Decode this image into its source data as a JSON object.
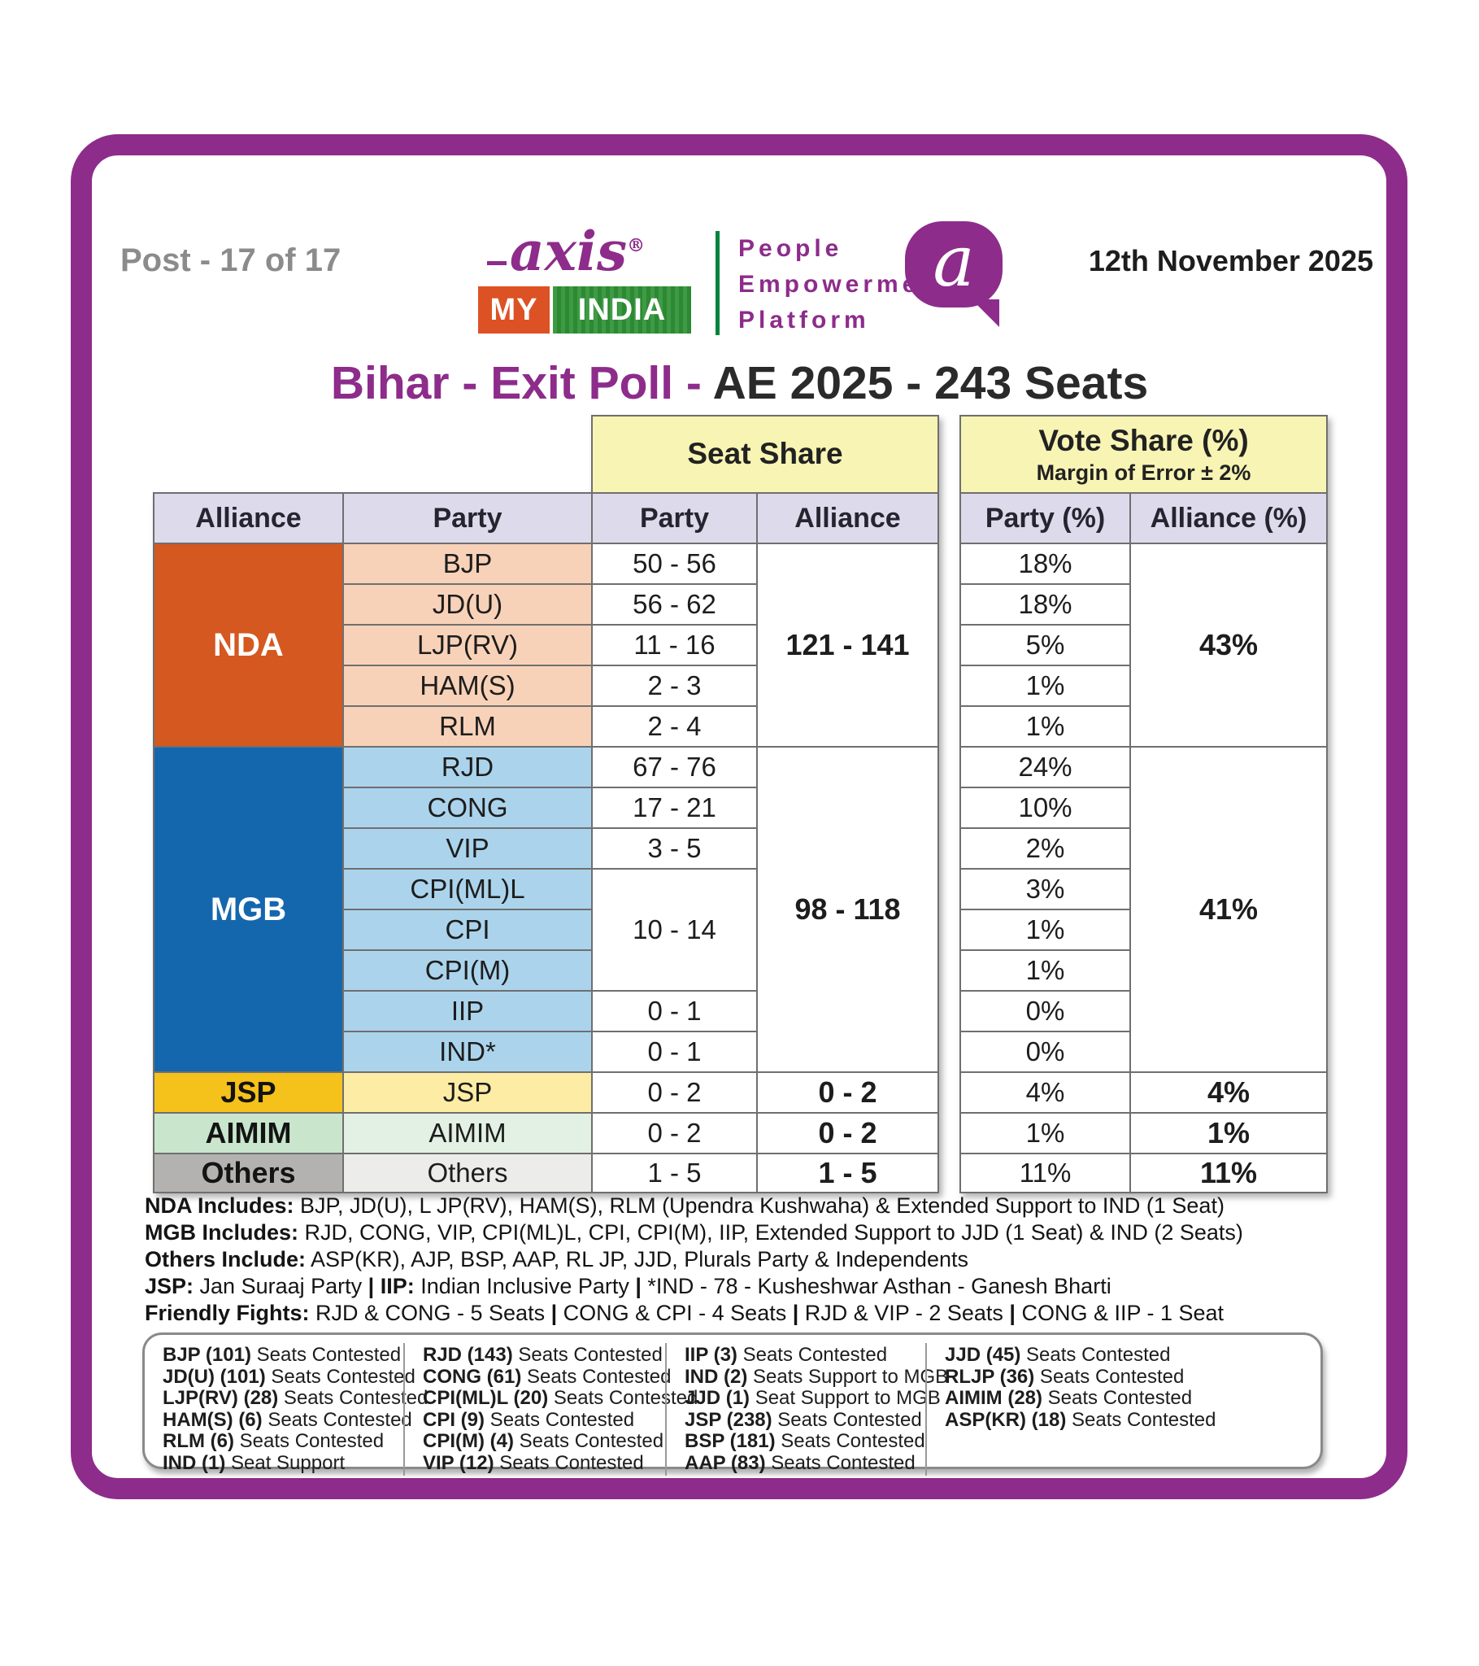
{
  "page": {
    "post_label": "Post - 17 of 17",
    "date": "12th November 2025",
    "title_primary": "Bihar - Exit Poll - ",
    "title_secondary": "AE 2025 - 243 Seats"
  },
  "logo": {
    "brand_top": "axis",
    "brand_reg": "®",
    "brand_my": "MY",
    "brand_india": "INDIA",
    "tagline_line1": "People",
    "tagline_line2": "Empowerment",
    "tagline_line3": "Platform",
    "bubble_letter": "a",
    "brand_purple": "#8d2c8b",
    "brand_orange": "#dd5224",
    "brand_green": "#2f9235"
  },
  "table": {
    "group_headers": {
      "seat_share": "Seat Share",
      "vote_share": "Vote Share (%)",
      "margin_of_error": "Margin of Error ± 2%"
    },
    "column_headers": [
      "Alliance",
      "Party",
      "Party",
      "Alliance",
      "Party (%)",
      "Alliance (%)"
    ],
    "alliances": [
      {
        "name": "NDA",
        "bg": "#d4581f",
        "party_bg": "#f8d2b8",
        "label_style": "light",
        "parties": [
          {
            "party": "BJP",
            "seats": "50 - 56",
            "vote": "18%"
          },
          {
            "party": "JD(U)",
            "seats": "56 - 62",
            "vote": "18%"
          },
          {
            "party": "LJP(RV)",
            "seats": "11 - 16",
            "vote": "5%"
          },
          {
            "party": "HAM(S)",
            "seats": "2 - 3",
            "vote": "1%"
          },
          {
            "party": "RLM",
            "seats": "2 - 4",
            "vote": "1%"
          }
        ],
        "alliance_seats": "121 - 141",
        "alliance_vote": "43%"
      },
      {
        "name": "MGB",
        "bg": "#1467ad",
        "party_bg": "#abd4ec",
        "label_style": "light",
        "parties": [
          {
            "party": "RJD",
            "seats": "67 - 76",
            "vote": "24%"
          },
          {
            "party": "CONG",
            "seats": "17 - 21",
            "vote": "10%"
          },
          {
            "party": "VIP",
            "seats": "3 - 5",
            "vote": "2%"
          },
          {
            "party": "CPI(ML)L",
            "seats": null,
            "vote": "3%"
          },
          {
            "party": "CPI",
            "seats": null,
            "vote": "1%"
          },
          {
            "party": "CPI(M)",
            "seats": null,
            "vote": "1%"
          },
          {
            "party": "IIP",
            "seats": "0 - 1",
            "vote": "0%"
          },
          {
            "party": "IND*",
            "seats": "0 - 1",
            "vote": "0%"
          }
        ],
        "merged_seats": {
          "value": "10 - 14",
          "start": 3,
          "span": 3
        },
        "alliance_seats": "98 - 118",
        "alliance_vote": "41%"
      },
      {
        "name": "JSP",
        "bg": "#f5c11b",
        "party_bg": "#fdeda4",
        "label_style": "dark",
        "parties": [
          {
            "party": "JSP",
            "seats": "0 - 2",
            "vote": "4%"
          }
        ],
        "alliance_seats": "0 - 2",
        "alliance_vote": "4%"
      },
      {
        "name": "AIMIM",
        "bg": "#c9e6cd",
        "party_bg": "#e2f1e3",
        "label_style": "dark",
        "parties": [
          {
            "party": "AIMIM",
            "seats": "0 - 2",
            "vote": "1%"
          }
        ],
        "alliance_seats": "0 - 2",
        "alliance_vote": "1%"
      },
      {
        "name": "Others",
        "bg": "#b3b2b0",
        "party_bg": "#ececea",
        "label_style": "dark",
        "parties": [
          {
            "party": "Others",
            "seats": "1 - 5",
            "vote": "11%"
          }
        ],
        "alliance_seats": "1 - 5",
        "alliance_vote": "11%"
      }
    ]
  },
  "footnotes": [
    [
      {
        "b": 1,
        "t": "NDA Includes:"
      },
      {
        "b": 0,
        "t": " BJP, JD(U), L JP(RV), HAM(S), RLM (Upendra Kushwaha) & Extended Support to IND (1 Seat)"
      }
    ],
    [
      {
        "b": 1,
        "t": "MGB Includes:"
      },
      {
        "b": 0,
        "t": " RJD, CONG, VIP, CPI(ML)L, CPI, CPI(M), IIP, Extended Support to JJD (1 Seat) & IND (2 Seats)"
      }
    ],
    [
      {
        "b": 1,
        "t": "Others Include:"
      },
      {
        "b": 0,
        "t": " ASP(KR), AJP, BSP, AAP, RL JP, JJD, Plurals Party & Independents"
      }
    ],
    [
      {
        "b": 1,
        "t": "JSP:"
      },
      {
        "b": 0,
        "t": " Jan Suraaj Party  "
      },
      {
        "b": 1,
        "t": "|"
      },
      {
        "b": 1,
        "t": "  IIP:"
      },
      {
        "b": 0,
        "t": " Indian Inclusive Party   "
      },
      {
        "b": 1,
        "t": "|"
      },
      {
        "b": 0,
        "t": "   *IND - 78 - Kusheshwar Asthan - Ganesh Bharti"
      }
    ],
    [
      {
        "b": 1,
        "t": "Friendly Fights:"
      },
      {
        "b": 0,
        "t": " RJD & CONG - 5 Seats  "
      },
      {
        "b": 1,
        "t": "|"
      },
      {
        "b": 0,
        "t": "  CONG & CPI - 4 Seats  "
      },
      {
        "b": 1,
        "t": "|"
      },
      {
        "b": 0,
        "t": "  RJD & VIP - 2 Seats  "
      },
      {
        "b": 1,
        "t": "|"
      },
      {
        "b": 0,
        "t": "  CONG & IIP - 1 Seat"
      }
    ]
  ],
  "contested_box": {
    "columns": [
      [
        {
          "b": "BJP (101)",
          "r": " Seats Contested"
        },
        {
          "b": "JD(U) (101)",
          "r": " Seats Contested"
        },
        {
          "b": "LJP(RV) (28)",
          "r": " Seats Contested"
        },
        {
          "b": "HAM(S) (6)",
          "r": " Seats Contested"
        },
        {
          "b": "RLM (6)",
          "r": " Seats Contested"
        },
        {
          "b": "IND (1)",
          "r": " Seat Support"
        }
      ],
      [
        {
          "b": "RJD (143)",
          "r": " Seats Contested"
        },
        {
          "b": "CONG (61)",
          "r": " Seats Contested"
        },
        {
          "b": "CPI(ML)L (20)",
          "r": " Seats Contested"
        },
        {
          "b": "CPI (9)",
          "r": " Seats Contested"
        },
        {
          "b": "CPI(M) (4)",
          "r": " Seats Contested"
        },
        {
          "b": "VIP (12)",
          "r": " Seats Contested"
        }
      ],
      [
        {
          "b": "IIP (3)",
          "r": " Seats Contested"
        },
        {
          "b": "IND (2)",
          "r": " Seats Support to MGB"
        },
        {
          "b": "JJD (1)",
          "r": " Seat Support to MGB"
        },
        {
          "b": "JSP (238)",
          "r": " Seats Contested"
        },
        {
          "b": "BSP (181)",
          "r": " Seats Contested"
        },
        {
          "b": "AAP (83)",
          "r": " Seats Contested"
        }
      ],
      [
        {
          "b": "JJD (45)",
          "r": " Seats Contested"
        },
        {
          "b": "RLJP (36)",
          "r": " Seats Contested"
        },
        {
          "b": "AIMIM (28)",
          "r": " Seats Contested"
        },
        {
          "b": "ASP(KR) (18)",
          "r": " Seats Contested"
        }
      ]
    ]
  },
  "chart_data": {
    "type": "table",
    "title": "Bihar - Exit Poll - AE 2025 - 243 Seats",
    "columns": [
      "Alliance",
      "Party",
      "Party Seats",
      "Alliance Seats",
      "Party Vote %",
      "Alliance Vote %"
    ],
    "rows": [
      [
        "NDA",
        "BJP",
        "50 - 56",
        "121 - 141",
        "18%",
        "43%"
      ],
      [
        "NDA",
        "JD(U)",
        "56 - 62",
        "121 - 141",
        "18%",
        "43%"
      ],
      [
        "NDA",
        "LJP(RV)",
        "11 - 16",
        "121 - 141",
        "5%",
        "43%"
      ],
      [
        "NDA",
        "HAM(S)",
        "2 - 3",
        "121 - 141",
        "1%",
        "43%"
      ],
      [
        "NDA",
        "RLM",
        "2 - 4",
        "121 - 141",
        "1%",
        "43%"
      ],
      [
        "MGB",
        "RJD",
        "67 - 76",
        "98 - 118",
        "24%",
        "41%"
      ],
      [
        "MGB",
        "CONG",
        "17 - 21",
        "98 - 118",
        "10%",
        "41%"
      ],
      [
        "MGB",
        "VIP",
        "3 - 5",
        "98 - 118",
        "2%",
        "41%"
      ],
      [
        "MGB",
        "CPI(ML)L",
        "10 - 14",
        "98 - 118",
        "3%",
        "41%"
      ],
      [
        "MGB",
        "CPI",
        "10 - 14",
        "98 - 118",
        "1%",
        "41%"
      ],
      [
        "MGB",
        "CPI(M)",
        "10 - 14",
        "98 - 118",
        "1%",
        "41%"
      ],
      [
        "MGB",
        "IIP",
        "0 - 1",
        "98 - 118",
        "0%",
        "41%"
      ],
      [
        "MGB",
        "IND*",
        "0 - 1",
        "98 - 118",
        "0%",
        "41%"
      ],
      [
        "JSP",
        "JSP",
        "0 - 2",
        "0 - 2",
        "4%",
        "4%"
      ],
      [
        "AIMIM",
        "AIMIM",
        "0 - 2",
        "0 - 2",
        "1%",
        "1%"
      ],
      [
        "Others",
        "Others",
        "1 - 5",
        "1 - 5",
        "11%",
        "11%"
      ]
    ]
  }
}
